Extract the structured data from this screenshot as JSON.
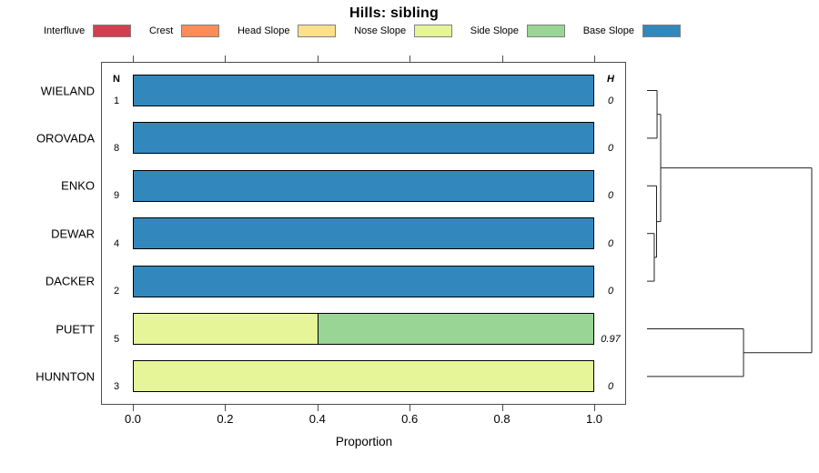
{
  "title": "Hills: sibling",
  "legend": {
    "items": [
      {
        "label": "Interfluve",
        "color": "#d53e4f"
      },
      {
        "label": "Crest",
        "color": "#fc8d59"
      },
      {
        "label": "Head Slope",
        "color": "#fee08b"
      },
      {
        "label": "Nose Slope",
        "color": "#e6f598"
      },
      {
        "label": "Side Slope",
        "color": "#99d594"
      },
      {
        "label": "Base Slope",
        "color": "#3288bd"
      }
    ]
  },
  "chart_data": {
    "type": "bar",
    "orientation": "horizontal",
    "stacked": true,
    "title": "Hills: sibling",
    "xlabel": "Proportion",
    "xlim": [
      0,
      1
    ],
    "x_ticks": [
      0.0,
      0.2,
      0.4,
      0.6,
      0.8,
      1.0
    ],
    "x_tick_labels": [
      "0.0",
      "0.2",
      "0.4",
      "0.6",
      "0.8",
      "1.0"
    ],
    "grid": false,
    "legend_position": "top",
    "columns": {
      "n_header": "N",
      "h_header": "H"
    },
    "rows": [
      {
        "category": "WIELAND",
        "n": "1",
        "h": "0",
        "segments": [
          {
            "class": "Base Slope",
            "color": "#3288bd",
            "from": 0,
            "to": 1
          }
        ]
      },
      {
        "category": "OROVADA",
        "n": "8",
        "h": "0",
        "segments": [
          {
            "class": "Base Slope",
            "color": "#3288bd",
            "from": 0,
            "to": 1
          }
        ]
      },
      {
        "category": "ENKO",
        "n": "9",
        "h": "0",
        "segments": [
          {
            "class": "Base Slope",
            "color": "#3288bd",
            "from": 0,
            "to": 1
          }
        ]
      },
      {
        "category": "DEWAR",
        "n": "4",
        "h": "0",
        "segments": [
          {
            "class": "Base Slope",
            "color": "#3288bd",
            "from": 0,
            "to": 1
          }
        ]
      },
      {
        "category": "DACKER",
        "n": "2",
        "h": "0",
        "segments": [
          {
            "class": "Base Slope",
            "color": "#3288bd",
            "from": 0,
            "to": 1
          }
        ]
      },
      {
        "category": "PUETT",
        "n": "5",
        "h": "0.97",
        "segments": [
          {
            "class": "Nose Slope",
            "color": "#e6f598",
            "from": 0,
            "to": 0.4
          },
          {
            "class": "Side Slope",
            "color": "#99d594",
            "from": 0.4,
            "to": 1
          }
        ]
      },
      {
        "category": "HUNNTON",
        "n": "3",
        "h": "0",
        "segments": [
          {
            "class": "Nose Slope",
            "color": "#e6f598",
            "from": 0,
            "to": 1
          }
        ]
      }
    ],
    "dendrogram": {
      "leaves": [
        "WIELAND",
        "OROVADA",
        "ENKO",
        "DEWAR",
        "DACKER",
        "PUETT",
        "HUNNTON"
      ],
      "merges": [
        {
          "id": "A",
          "children": [
            "WIELAND",
            "OROVADA"
          ],
          "height": 0.061
        },
        {
          "id": "B",
          "children": [
            "DEWAR",
            "DACKER"
          ],
          "height": 0.044
        },
        {
          "id": "C",
          "children": [
            "ENKO",
            "B"
          ],
          "height": 0.058
        },
        {
          "id": "D",
          "children": [
            "A",
            "C"
          ],
          "height": 0.083
        },
        {
          "id": "E",
          "children": [
            "PUETT",
            "HUNNTON"
          ],
          "height": 0.586
        },
        {
          "id": "ROOT",
          "children": [
            "D",
            "E"
          ],
          "height": 1.0
        }
      ]
    }
  }
}
